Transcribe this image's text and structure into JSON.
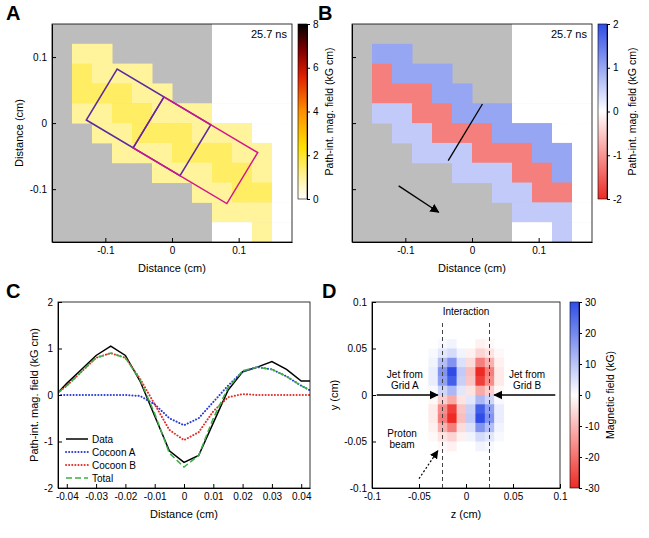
{
  "chart_data": [
    {
      "label": "A",
      "type": "heatmap",
      "annotation": "25.7 ns",
      "x": [
        -0.165,
        -0.135,
        -0.105,
        -0.075,
        -0.045,
        -0.015,
        0.015,
        0.045,
        0.075,
        0.105,
        0.135,
        0.165
      ],
      "y": [
        0.135,
        0.105,
        0.075,
        0.045,
        0.015,
        -0.015,
        -0.045,
        -0.075,
        -0.105,
        -0.135,
        -0.165
      ],
      "cells": [
        [
          null,
          null,
          null,
          null,
          null,
          null,
          null,
          null,
          0,
          0,
          0,
          0
        ],
        [
          null,
          1,
          1,
          null,
          null,
          null,
          null,
          null,
          0,
          0,
          0,
          0
        ],
        [
          null,
          1.5,
          1,
          1,
          1,
          null,
          null,
          null,
          0,
          0,
          0,
          0
        ],
        [
          null,
          1.5,
          1.5,
          1.5,
          1,
          1,
          null,
          null,
          0,
          0,
          0,
          0
        ],
        [
          null,
          1,
          1,
          1.5,
          1.5,
          1,
          1,
          1,
          0,
          0,
          0,
          0
        ],
        [
          null,
          null,
          1,
          1,
          1.5,
          1.5,
          1.5,
          1,
          1,
          1,
          0,
          0
        ],
        [
          null,
          null,
          null,
          1,
          1,
          1,
          1.5,
          1.5,
          1.5,
          1,
          1,
          0
        ],
        [
          null,
          null,
          null,
          null,
          null,
          1,
          1,
          1,
          1.5,
          1.5,
          1,
          0
        ],
        [
          null,
          null,
          null,
          null,
          null,
          null,
          null,
          1,
          1,
          1.5,
          1.5,
          0
        ],
        [
          null,
          null,
          null,
          null,
          null,
          null,
          null,
          null,
          1,
          1,
          1,
          0
        ],
        [
          null,
          null,
          null,
          null,
          null,
          null,
          null,
          null,
          0,
          0,
          1,
          0
        ]
      ],
      "xlim": [
        -0.18,
        0.18
      ],
      "ylim": [
        -0.18,
        0.15
      ],
      "xticks": [
        -0.1,
        0,
        0.1
      ],
      "yticks": [
        -0.1,
        0,
        0.1
      ],
      "xlabel": "Distance (cm)",
      "ylabel": "Distance (cm)",
      "colorbar": {
        "label": "Path-int. mag. field (kG cm)",
        "range": [
          0,
          8
        ],
        "ticks": [
          0,
          2,
          4,
          6,
          8
        ]
      }
    },
    {
      "label": "B",
      "type": "heatmap",
      "annotation": "25.7 ns",
      "tick_labels": "x",
      "x": [
        -0.165,
        -0.135,
        -0.105,
        -0.075,
        -0.045,
        -0.015,
        0.015,
        0.045,
        0.075,
        0.105,
        0.135,
        0.165
      ],
      "y": [
        0.135,
        0.105,
        0.075,
        0.045,
        0.015,
        -0.015,
        -0.045,
        -0.075,
        -0.105,
        -0.135,
        -0.165
      ],
      "cells": [
        [
          null,
          null,
          null,
          null,
          null,
          null,
          null,
          null,
          0,
          0,
          0,
          0
        ],
        [
          null,
          1,
          1,
          null,
          null,
          null,
          null,
          null,
          0,
          0,
          0,
          0
        ],
        [
          null,
          -1.2,
          1,
          1,
          1,
          null,
          null,
          null,
          0,
          0,
          0,
          0
        ],
        [
          null,
          -1.2,
          -1.2,
          -1.2,
          1,
          1,
          null,
          null,
          0,
          0,
          0,
          0
        ],
        [
          null,
          0.6,
          0.6,
          -1.2,
          -1.2,
          1,
          1,
          1,
          0,
          0,
          0,
          0
        ],
        [
          null,
          null,
          0.6,
          0.6,
          -1.2,
          -1.2,
          -1.2,
          1,
          1,
          1,
          0,
          0
        ],
        [
          null,
          null,
          null,
          0.6,
          0.6,
          0.6,
          -1.2,
          -1.2,
          -1.2,
          1,
          1,
          0
        ],
        [
          null,
          null,
          null,
          null,
          null,
          0.6,
          0.6,
          0.6,
          -1.2,
          -1.2,
          1,
          0
        ],
        [
          null,
          null,
          null,
          null,
          null,
          null,
          null,
          0.6,
          0.6,
          -1.2,
          -1.2,
          0
        ],
        [
          null,
          null,
          null,
          null,
          null,
          null,
          null,
          null,
          0.6,
          0.6,
          0.6,
          0
        ],
        [
          null,
          null,
          null,
          null,
          null,
          null,
          null,
          null,
          0,
          0,
          0.6,
          0
        ]
      ],
      "xlim": [
        -0.18,
        0.18
      ],
      "ylim": [
        -0.18,
        0.15
      ],
      "xticks": [
        -0.1,
        0,
        0.1
      ],
      "yticks": [
        -0.1,
        0,
        0.1
      ],
      "xlabel": "Distance (cm)",
      "colorbar": {
        "label": "Path-int. mag. field (kG cm)",
        "range": [
          -2,
          2
        ],
        "ticks": [
          -2,
          -1,
          0,
          1,
          2
        ]
      }
    },
    {
      "label": "C",
      "type": "line",
      "x": [
        -0.043,
        -0.04,
        -0.035,
        -0.03,
        -0.025,
        -0.02,
        -0.015,
        -0.01,
        -0.005,
        0,
        0.005,
        0.01,
        0.015,
        0.02,
        0.025,
        0.03,
        0.035,
        0.04,
        0.043
      ],
      "series": [
        {
          "name": "Data",
          "color": "#000000",
          "line_style": "solid",
          "values": [
            0.05,
            0.25,
            0.55,
            0.85,
            1.05,
            0.85,
            0.3,
            -0.45,
            -1.2,
            -1.45,
            -1.3,
            -0.6,
            0.1,
            0.5,
            0.6,
            0.72,
            0.55,
            0.3,
            0.3
          ]
        },
        {
          "name": "Cocoon A",
          "color": "#2b3bd6",
          "line_style": "dotted",
          "values": [
            0,
            0,
            0,
            0,
            0,
            0,
            -0.02,
            -0.2,
            -0.5,
            -0.65,
            -0.5,
            -0.15,
            0.2,
            0.5,
            0.6,
            0.55,
            0.4,
            0.2,
            0.1
          ]
        },
        {
          "name": "Cocoon B",
          "color": "#e0302a",
          "line_style": "dotted",
          "values": [
            0.05,
            0.2,
            0.5,
            0.8,
            0.9,
            0.8,
            0.35,
            -0.2,
            -0.75,
            -0.97,
            -0.8,
            -0.35,
            -0.05,
            0.02,
            0,
            0,
            0,
            0,
            0
          ]
        },
        {
          "name": "Total",
          "color": "#3cb043",
          "line_style": "dashed",
          "values": [
            0.05,
            0.2,
            0.5,
            0.8,
            0.9,
            0.8,
            0.33,
            -0.4,
            -1.25,
            -1.55,
            -1.3,
            -0.5,
            0.15,
            0.52,
            0.6,
            0.55,
            0.4,
            0.2,
            0.1
          ]
        }
      ],
      "xlim": [
        -0.043,
        0.043
      ],
      "ylim": [
        -2,
        2
      ],
      "xticks": [
        -0.04,
        -0.03,
        -0.02,
        -0.01,
        0,
        0.01,
        0.02,
        0.03,
        0.04
      ],
      "yticks": [
        -2,
        -1,
        0,
        1,
        2
      ],
      "xlabel": "Distance (cm)",
      "ylabel": "Path-int. mag. field (kG cm)",
      "legend": "lower left"
    },
    {
      "label": "D",
      "type": "heatmap",
      "x": [
        -0.035,
        -0.025,
        -0.015,
        -0.005,
        0.005,
        0.015,
        0.025,
        0.035
      ],
      "y": [
        0.055,
        0.045,
        0.035,
        0.025,
        0.015,
        0.005,
        -0.005,
        -0.015,
        -0.025,
        -0.035,
        -0.045,
        -0.055
      ],
      "cells": [
        [
          0,
          1,
          2,
          0,
          0,
          -2,
          -1,
          0
        ],
        [
          1,
          4,
          6,
          2,
          -2,
          -6,
          -4,
          -1
        ],
        [
          2,
          11,
          18,
          5,
          -5,
          -18,
          -11,
          -2
        ],
        [
          3,
          18,
          30,
          9,
          -9,
          -30,
          -18,
          -3
        ],
        [
          3,
          16,
          27,
          8,
          -8,
          -27,
          -16,
          -3
        ],
        [
          1,
          7,
          12,
          4,
          -4,
          -12,
          -7,
          -1
        ],
        [
          -1,
          -7,
          -12,
          -4,
          4,
          12,
          7,
          1
        ],
        [
          -3,
          -16,
          -27,
          -8,
          8,
          27,
          16,
          3
        ],
        [
          -3,
          -18,
          -30,
          -9,
          9,
          30,
          18,
          3
        ],
        [
          -2,
          -11,
          -18,
          -5,
          5,
          18,
          11,
          2
        ],
        [
          -1,
          -4,
          -6,
          -2,
          2,
          6,
          4,
          1
        ],
        [
          0,
          -1,
          -2,
          0,
          0,
          2,
          1,
          0
        ]
      ],
      "xlim": [
        -0.1,
        0.1
      ],
      "ylim": [
        -0.1,
        0.1
      ],
      "xticks": [
        -0.1,
        -0.05,
        0,
        0.05,
        0.1
      ],
      "yticks": [
        -0.1,
        -0.05,
        0,
        0.05,
        0.1
      ],
      "xlabel": "z (cm)",
      "ylabel": "y (cm)",
      "colorbar": {
        "label": "Magnetic field (kG)",
        "range": [
          -30,
          30
        ],
        "ticks": [
          -30,
          -20,
          -10,
          0,
          10,
          20,
          30
        ]
      },
      "interaction_z": [
        -0.025,
        0.025
      ],
      "annotations": [
        "Interaction",
        "Jet from Grid A",
        "Jet from Grid B",
        "Proton beam"
      ]
    }
  ]
}
